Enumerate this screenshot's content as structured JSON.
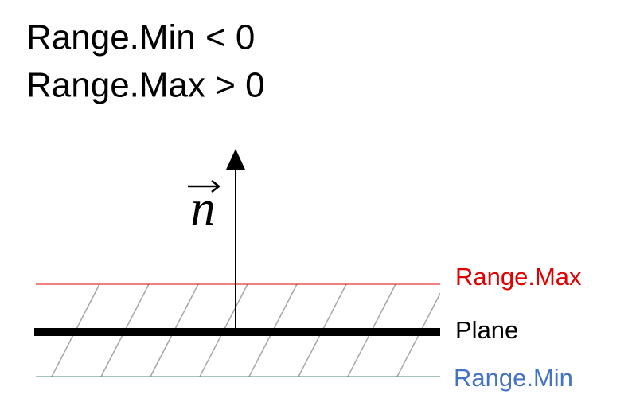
{
  "conditions": [
    "Range.Min < 0",
    "Range.Max > 0"
  ],
  "normal": {
    "label": "n"
  },
  "lines": [
    {
      "label": "Range.Max"
    },
    {
      "label": "Plane"
    },
    {
      "label": "Range.Min"
    }
  ]
}
